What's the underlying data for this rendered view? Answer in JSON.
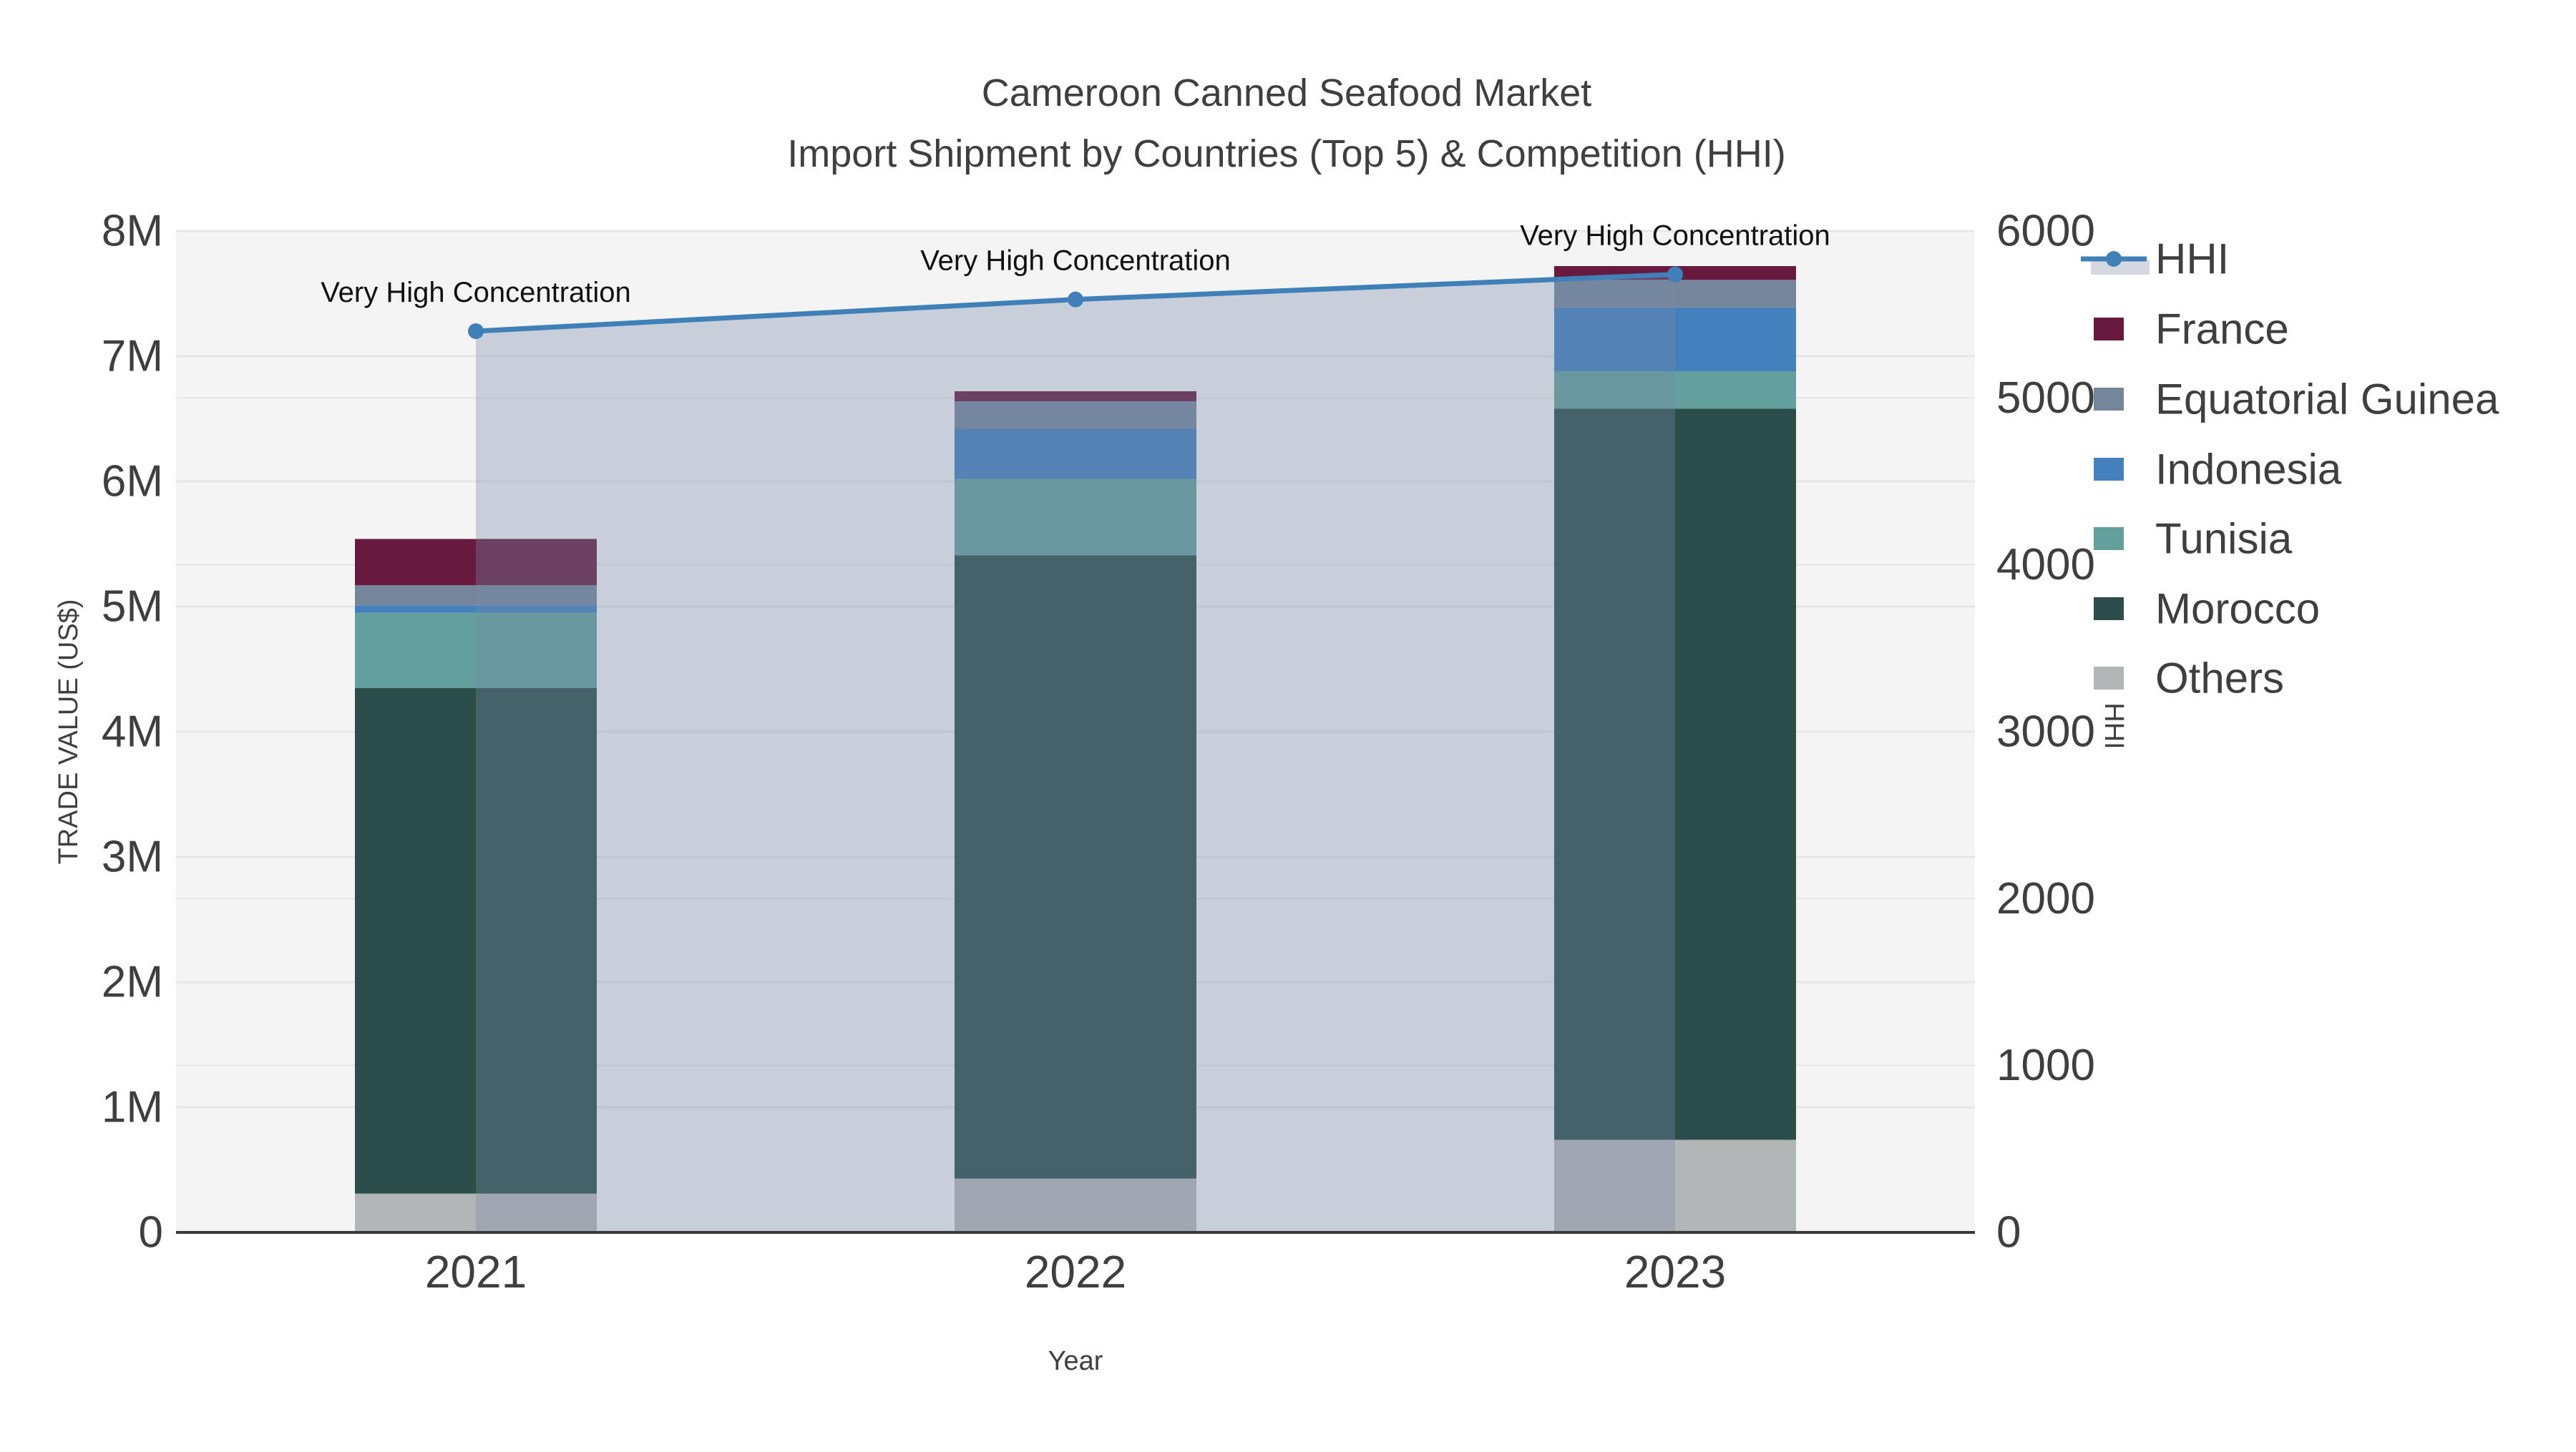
{
  "title": {
    "line1": "Cameroon Canned Seafood Market",
    "line2": "Import Shipment by Countries (Top 5) & Competition (HHI)"
  },
  "colors": {
    "plot_bg": "#f4f4f4",
    "grid": "#e6e6e6",
    "axis_line": "#3a3a3a",
    "text": "#3f3f3f",
    "annotation": "#111111",
    "hhi_line": "#4080b8",
    "hhi_fill": "rgba(117,137,168,0.35)"
  },
  "chart_data": {
    "type": "bar",
    "subtype": "stacked-bars-with-line",
    "categories": [
      "2021",
      "2022",
      "2023"
    ],
    "bar_value_unit": "million US$",
    "series": [
      {
        "name": "Others",
        "color": "#b3b6b6",
        "values": [
          0.31,
          0.43,
          0.74
        ]
      },
      {
        "name": "Morocco",
        "color": "#2c4e4b",
        "values": [
          4.04,
          4.98,
          5.84
        ]
      },
      {
        "name": "Tunisia",
        "color": "#63a09d",
        "values": [
          0.6,
          0.61,
          0.3
        ]
      },
      {
        "name": "Indonesia",
        "color": "#4480bc",
        "values": [
          0.06,
          0.4,
          0.51
        ]
      },
      {
        "name": "Equatorial Guinea",
        "color": "#75859a",
        "values": [
          0.16,
          0.22,
          0.22
        ]
      },
      {
        "name": "France",
        "color": "#671a3d",
        "values": [
          0.37,
          0.08,
          0.11
        ]
      }
    ],
    "bar_totals": [
      5.54,
      6.72,
      7.72
    ],
    "line_series": {
      "name": "HHI",
      "axis": "right",
      "values": [
        5400,
        5590,
        5740
      ],
      "color": "#4080b8",
      "fill_color": "rgba(117,137,168,0.35)"
    },
    "annotations": [
      "Very High Concentration",
      "Very High Concentration",
      "Very High Concentration"
    ],
    "xlabel": "Year",
    "ylabel_left": "TRADE VALUE (US$)",
    "ylabel_right": "HHI",
    "y_left": {
      "min": 0,
      "max": 8,
      "unit": "M",
      "tick_labels": [
        "0",
        "1M",
        "2M",
        "3M",
        "4M",
        "5M",
        "6M",
        "7M",
        "8M"
      ]
    },
    "y_right": {
      "min": 0,
      "max": 6000,
      "tick_labels": [
        "0",
        "1000",
        "2000",
        "3000",
        "4000",
        "5000",
        "6000"
      ]
    },
    "grid": "both-axes",
    "legend_position": "right",
    "legend_order": [
      "HHI",
      "France",
      "Equatorial Guinea",
      "Indonesia",
      "Tunisia",
      "Morocco",
      "Others"
    ]
  }
}
